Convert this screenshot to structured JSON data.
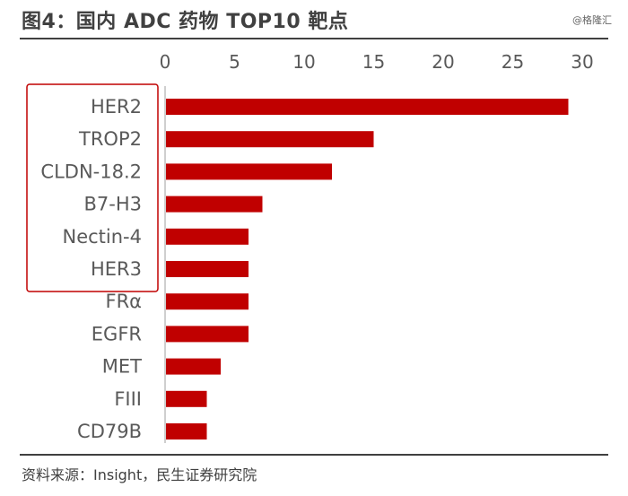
{
  "header": {
    "title": "图4：国内 ADC 药物 TOP10 靶点",
    "watermark": "@格隆汇"
  },
  "footer": {
    "source": "资料来源：Insight，民生证券研究院"
  },
  "colors": {
    "bar": "#c00000",
    "highlight_box": "#c00000",
    "text": "#595959",
    "axis": "#bfbfbf"
  },
  "chart_data": {
    "type": "bar",
    "orientation": "horizontal",
    "categories": [
      "HER2",
      "TROP2",
      "CLDN-18.2",
      "B7-H3",
      "Nectin-4",
      "HER3",
      "FRα",
      "EGFR",
      "MET",
      "FIII",
      "CD79B"
    ],
    "values": [
      29,
      15,
      12,
      7,
      6,
      6,
      6,
      6,
      4,
      3,
      3
    ],
    "xlim": [
      0,
      30
    ],
    "x_ticks": [
      0,
      5,
      10,
      15,
      20,
      25,
      30
    ],
    "x_axis_position": "top",
    "grid": false,
    "highlighted_categories": [
      "HER2",
      "TROP2",
      "CLDN-18.2",
      "B7-H3",
      "Nectin-4",
      "HER3"
    ]
  }
}
